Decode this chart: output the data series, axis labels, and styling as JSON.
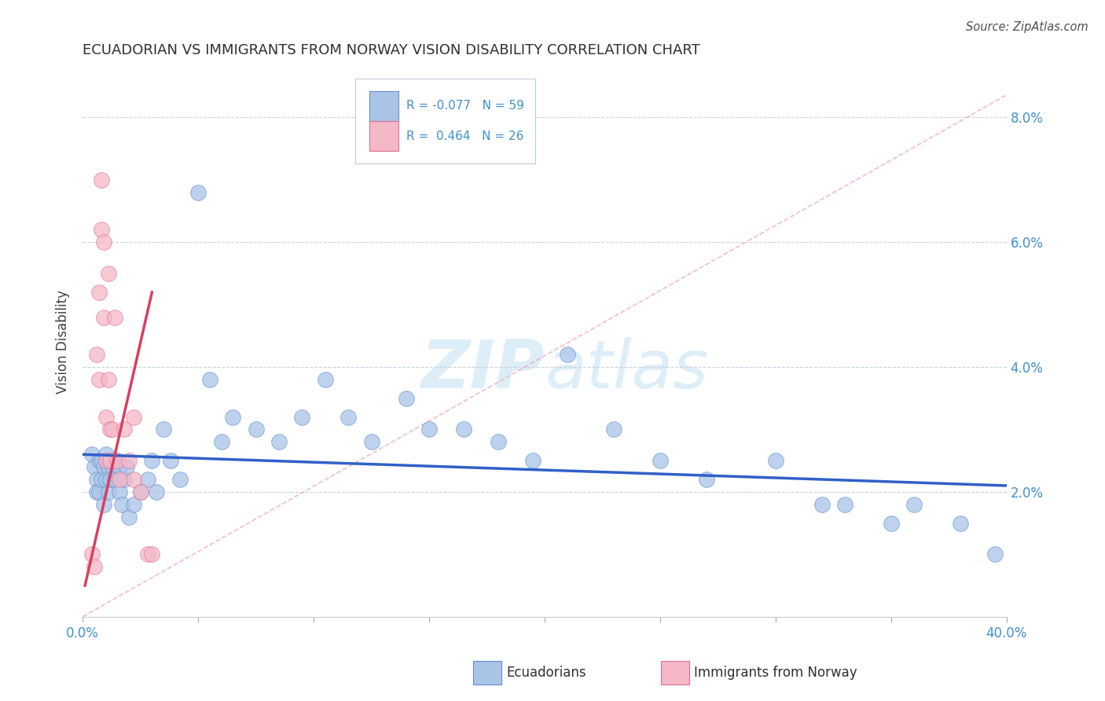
{
  "title": "ECUADORIAN VS IMMIGRANTS FROM NORWAY VISION DISABILITY CORRELATION CHART",
  "source": "Source: ZipAtlas.com",
  "ylabel": "Vision Disability",
  "r_blue": -0.077,
  "n_blue": 59,
  "r_pink": 0.464,
  "n_pink": 26,
  "legend_blue": "Ecuadorians",
  "legend_pink": "Immigrants from Norway",
  "blue_scatter_color": "#aac4e8",
  "blue_edge_color": "#6090cc",
  "pink_scatter_color": "#f4b8c8",
  "pink_edge_color": "#e07090",
  "blue_line_color": "#3060c8",
  "pink_line_color": "#d84060",
  "pink_dash_color": "#f0a0b0",
  "axis_label_color": "#4090d0",
  "title_color": "#303030",
  "watermark_color": "#ddeef8",
  "x_min": 0.0,
  "x_max": 0.4,
  "y_min": 0.0,
  "y_max": 0.088,
  "yticks": [
    0.0,
    0.02,
    0.04,
    0.06,
    0.08
  ],
  "ytick_labels": [
    "",
    "2.0%",
    "4.0%",
    "6.0%",
    "8.0%"
  ],
  "xtick_positions": [
    0.0,
    0.05,
    0.1,
    0.15,
    0.2,
    0.25,
    0.3,
    0.35,
    0.4
  ],
  "blue_x": [
    0.004,
    0.005,
    0.006,
    0.006,
    0.007,
    0.007,
    0.008,
    0.008,
    0.009,
    0.009,
    0.01,
    0.01,
    0.011,
    0.011,
    0.012,
    0.012,
    0.013,
    0.014,
    0.015,
    0.016,
    0.016,
    0.017,
    0.018,
    0.019,
    0.02,
    0.022,
    0.025,
    0.028,
    0.03,
    0.032,
    0.035,
    0.038,
    0.042,
    0.05,
    0.055,
    0.06,
    0.065,
    0.075,
    0.085,
    0.095,
    0.105,
    0.115,
    0.125,
    0.14,
    0.15,
    0.165,
    0.18,
    0.195,
    0.21,
    0.23,
    0.25,
    0.27,
    0.3,
    0.32,
    0.33,
    0.35,
    0.36,
    0.38,
    0.395
  ],
  "blue_y": [
    0.026,
    0.024,
    0.022,
    0.02,
    0.025,
    0.02,
    0.025,
    0.022,
    0.024,
    0.018,
    0.026,
    0.022,
    0.024,
    0.02,
    0.025,
    0.022,
    0.024,
    0.022,
    0.025,
    0.024,
    0.02,
    0.018,
    0.022,
    0.024,
    0.016,
    0.018,
    0.02,
    0.022,
    0.025,
    0.02,
    0.03,
    0.025,
    0.022,
    0.068,
    0.038,
    0.028,
    0.032,
    0.03,
    0.028,
    0.032,
    0.038,
    0.032,
    0.028,
    0.035,
    0.03,
    0.03,
    0.028,
    0.025,
    0.042,
    0.03,
    0.025,
    0.022,
    0.025,
    0.018,
    0.018,
    0.015,
    0.018,
    0.015,
    0.01
  ],
  "pink_x": [
    0.004,
    0.005,
    0.006,
    0.007,
    0.007,
    0.008,
    0.008,
    0.009,
    0.009,
    0.01,
    0.01,
    0.011,
    0.011,
    0.012,
    0.012,
    0.013,
    0.014,
    0.015,
    0.016,
    0.018,
    0.02,
    0.022,
    0.022,
    0.025,
    0.028,
    0.03
  ],
  "pink_y": [
    0.01,
    0.008,
    0.042,
    0.052,
    0.038,
    0.07,
    0.062,
    0.06,
    0.048,
    0.032,
    0.025,
    0.055,
    0.038,
    0.03,
    0.025,
    0.03,
    0.048,
    0.025,
    0.022,
    0.03,
    0.025,
    0.032,
    0.022,
    0.02,
    0.01,
    0.01
  ],
  "pink_trend_x": [
    0.001,
    0.03
  ],
  "pink_trend_y_start": 0.005,
  "pink_trend_y_end": 0.052,
  "blue_trend_y_at_0": 0.026,
  "blue_trend_y_at_40": 0.021
}
